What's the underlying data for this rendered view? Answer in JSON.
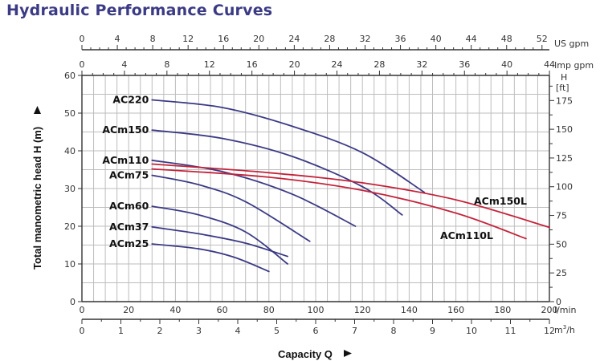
{
  "page": {
    "title": "Hydraulic Performance Curves"
  },
  "chart_data": {
    "type": "line",
    "title": "Hydraulic Performance Curves",
    "xlabel": "Capacity Q",
    "ylabel": "Total manometric head H (m)",
    "x_unit": "l/min",
    "y_unit": "m",
    "xlim": [
      0,
      200
    ],
    "ylim": [
      0,
      60
    ],
    "grid": true,
    "x_ticks": [
      0,
      20,
      40,
      60,
      80,
      100,
      120,
      140,
      160,
      180,
      200
    ],
    "y_ticks": [
      0,
      10,
      20,
      30,
      40,
      50,
      60
    ],
    "secondary_axes": {
      "us_gpm": {
        "label": "US gpm",
        "ticks": [
          0,
          4,
          8,
          12,
          16,
          20,
          24,
          28,
          32,
          36,
          40,
          44,
          48,
          52
        ],
        "factor": 0.264172
      },
      "imp_gpm": {
        "label": "Imp gpm",
        "ticks": [
          0,
          4,
          8,
          12,
          16,
          20,
          24,
          28,
          32,
          36,
          40,
          44
        ],
        "factor": 0.219969
      },
      "m3h": {
        "label": "m³/h",
        "ticks": [
          0,
          1,
          2,
          3,
          4,
          5,
          6,
          7,
          8,
          9,
          10,
          11,
          12
        ],
        "factor": 0.06
      },
      "ft": {
        "label": "H [ft]",
        "ticks": [
          0,
          25,
          50,
          75,
          100,
          125,
          150,
          175
        ],
        "factor": 3.28084
      }
    },
    "series": [
      {
        "name": "AC220",
        "color": "#3b3a85",
        "label_side": "left",
        "x": [
          30,
          60,
          90,
          120,
          146.5
        ],
        "y": [
          53.5,
          51.5,
          46.5,
          39.5,
          29
        ]
      },
      {
        "name": "ACm150",
        "color": "#3b3a85",
        "label_side": "left",
        "x": [
          30,
          60,
          90,
          120,
          137
        ],
        "y": [
          45.5,
          43.3,
          38.5,
          30.5,
          23
        ]
      },
      {
        "name": "ACm110",
        "color": "#3b3a85",
        "label_side": "left",
        "x": [
          30,
          60,
          90,
          117
        ],
        "y": [
          37.5,
          34.5,
          28.5,
          20
        ]
      },
      {
        "name": "ACm75",
        "color": "#3b3a85",
        "label_side": "left",
        "x": [
          30,
          50,
          70,
          97.5
        ],
        "y": [
          33.5,
          31,
          26.5,
          16
        ]
      },
      {
        "name": "ACm60",
        "color": "#3b3a85",
        "label_side": "left",
        "x": [
          30,
          50,
          70,
          88
        ],
        "y": [
          25.3,
          23,
          18.5,
          10
        ]
      },
      {
        "name": "ACm37",
        "color": "#3b3a85",
        "label_side": "left",
        "x": [
          30,
          50,
          70,
          88
        ],
        "y": [
          19.8,
          18,
          15.5,
          12
        ]
      },
      {
        "name": "ACm25",
        "color": "#3b3a85",
        "label_side": "left",
        "x": [
          30,
          50,
          65,
          80
        ],
        "y": [
          15.3,
          14,
          11.8,
          8
        ]
      },
      {
        "name": "ACm150L",
        "color": "#c4233a",
        "label_side": "right",
        "x": [
          30,
          80,
          120,
          160,
          200
        ],
        "y": [
          36.5,
          34.2,
          31.5,
          27,
          19.7
        ]
      },
      {
        "name": "ACm110L",
        "color": "#c4233a",
        "label_side": "right",
        "x": [
          30,
          80,
          120,
          160,
          190
        ],
        "y": [
          35.2,
          33,
          29.5,
          23.5,
          16.7
        ]
      }
    ]
  },
  "labels": {
    "x_axis_title": "Capacity Q",
    "y_axis_title": "Total manometric head H (m)",
    "lmin": "l/min",
    "m3h_main": "m",
    "m3h_sup": "3",
    "m3h_tail": "/h",
    "us_gpm": "US gpm",
    "imp_gpm": "Imp gpm",
    "h_ft_top": "H",
    "h_ft_unit": "[ft]"
  }
}
